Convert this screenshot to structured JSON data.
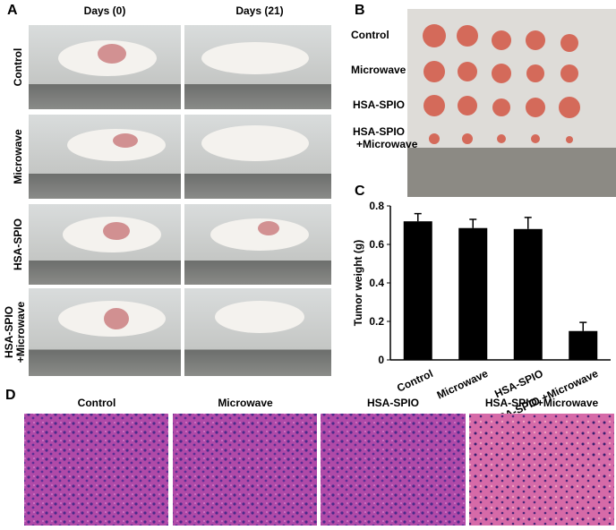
{
  "panels": {
    "a": {
      "letter": "A",
      "columns": [
        "Days (0)",
        "Days (21)"
      ],
      "rows": [
        "Control",
        "Microwave",
        "HSA-SPIO",
        "HSA-SPIO",
        "+Microwave"
      ]
    },
    "b": {
      "letter": "B",
      "rows": [
        "Control",
        "Microwave",
        "HSA-SPIO",
        "HSA-SPIO",
        "+Microwave"
      ]
    },
    "c": {
      "letter": "C"
    },
    "d": {
      "letter": "D",
      "titles": [
        "Control",
        "Microwave",
        "HSA-SPIO",
        "HSA-SPIO+Microwave"
      ]
    }
  },
  "chart_data": {
    "type": "bar",
    "ylabel": "Tumor weight (g)",
    "categories": [
      "Control",
      "Microwave",
      "HSA-SPIO",
      "HSA-SPIO +Microwave"
    ],
    "values": [
      0.72,
      0.685,
      0.68,
      0.15
    ],
    "errors": [
      0.04,
      0.045,
      0.06,
      0.045
    ],
    "color": "#000000",
    "ylim": [
      0,
      0.8
    ],
    "yticks": [
      0,
      0.2,
      0.4,
      0.6,
      0.8
    ]
  }
}
